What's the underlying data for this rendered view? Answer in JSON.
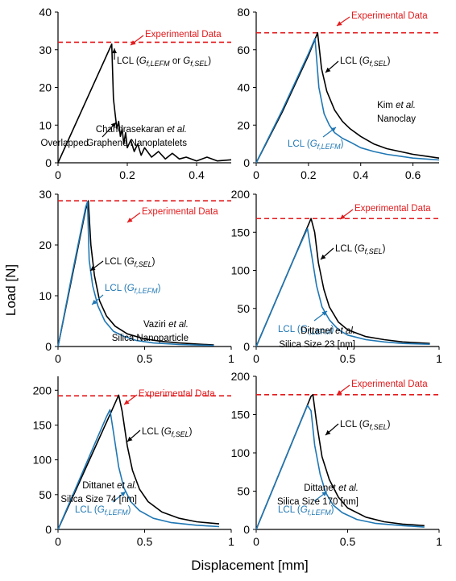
{
  "figure": {
    "ylabel": "Load [N]",
    "xlabel": "Displacement [mm]"
  },
  "chart_data": [
    {
      "type": "line",
      "xlim": [
        0,
        0.5
      ],
      "ylim": [
        0,
        40
      ],
      "xticks": [
        "0",
        "0.2",
        "0.4"
      ],
      "xtick_values": [
        0,
        0.2,
        0.4
      ],
      "yticks": [
        "0",
        "10",
        "20",
        "30",
        "40"
      ],
      "ytick_values": [
        0,
        10,
        20,
        30,
        40
      ],
      "reference_y": 32,
      "reference_label": "Experimental Data",
      "sample_label_1": "Chandrasekaran et al.",
      "sample_label_2": "Graphene Nanoplatelets",
      "lcl_label": "LCL (Gf,LEFM or Gf,SEL)",
      "overlap_label": "Overlapped",
      "series": [
        {
          "color": "#000000",
          "x": [
            0,
            0.155,
            0.157,
            0.16,
            0.165,
            0.17,
            0.175,
            0.18,
            0.185,
            0.19,
            0.195,
            0.2,
            0.21,
            0.22,
            0.23,
            0.24,
            0.25,
            0.27,
            0.29,
            0.31,
            0.33,
            0.35,
            0.37,
            0.4,
            0.43,
            0.46,
            0.5
          ],
          "y": [
            0,
            31.5,
            26,
            17,
            13,
            9,
            11,
            7,
            9,
            5,
            8,
            4,
            6,
            3,
            5,
            2,
            4,
            1.5,
            3,
            1,
            2.5,
            1,
            1.5,
            0.5,
            1.5,
            0.5,
            0.8
          ]
        }
      ]
    },
    {
      "type": "line",
      "xlim": [
        0,
        0.7
      ],
      "ylim": [
        0,
        80
      ],
      "xticks": [
        "0",
        "0.2",
        "0.4",
        "0.6"
      ],
      "xtick_values": [
        0,
        0.2,
        0.4,
        0.6
      ],
      "yticks": [
        "0",
        "20",
        "40",
        "60",
        "80"
      ],
      "ytick_values": [
        0,
        20,
        40,
        60,
        80
      ],
      "reference_y": 69,
      "reference_label": "Experimental Data",
      "sample_label_1": "Kim et al.",
      "sample_label_2": "Nanoclay",
      "lcl_label": "LCL (Gf,SEL)",
      "lcl2_label": "LCL (Gf,LEFM)",
      "series": [
        {
          "color": "#000000",
          "x": [
            0,
            0.1,
            0.2,
            0.235,
            0.25,
            0.27,
            0.3,
            0.33,
            0.36,
            0.4,
            0.45,
            0.5,
            0.55,
            0.6,
            0.65,
            0.7
          ],
          "y": [
            0,
            27,
            57,
            69,
            50,
            38,
            28,
            22,
            18,
            14,
            10,
            7.5,
            6,
            4.5,
            3.5,
            2.5
          ]
        },
        {
          "color": "#1f77b4",
          "x": [
            0,
            0.1,
            0.2,
            0.225,
            0.24,
            0.26,
            0.28,
            0.3,
            0.33,
            0.36,
            0.4,
            0.45,
            0.5,
            0.55,
            0.6,
            0.7
          ],
          "y": [
            0,
            28,
            58,
            66,
            40,
            26,
            20,
            16,
            13,
            11,
            8,
            6,
            4.5,
            3.5,
            2.5,
            1.5
          ]
        }
      ]
    },
    {
      "type": "line",
      "xlim": [
        0,
        1
      ],
      "ylim": [
        0,
        30
      ],
      "xticks": [
        "0",
        "0.5",
        "1"
      ],
      "xtick_values": [
        0,
        0.5,
        1
      ],
      "yticks": [
        "0",
        "10",
        "20",
        "30"
      ],
      "ytick_values": [
        0,
        10,
        20,
        30
      ],
      "reference_y": 28.7,
      "reference_label": "Experimental Data",
      "sample_label_1": "Vaziri et al.",
      "sample_label_2": "Silica Nanoparticle",
      "lcl_label": "LCL (Gf,SEL)",
      "lcl2_label": "LCL (Gf,LEFM)",
      "series": [
        {
          "color": "#000000",
          "x": [
            0,
            0.08,
            0.16,
            0.175,
            0.19,
            0.21,
            0.24,
            0.28,
            0.33,
            0.4,
            0.5,
            0.6,
            0.7,
            0.8,
            0.9
          ],
          "y": [
            0,
            13.5,
            27,
            28.7,
            20,
            14,
            9,
            6,
            4,
            2.5,
            1.5,
            1,
            0.7,
            0.5,
            0.3
          ]
        },
        {
          "color": "#1f77b4",
          "x": [
            0,
            0.08,
            0.16,
            0.17,
            0.18,
            0.2,
            0.23,
            0.27,
            0.32,
            0.38,
            0.45,
            0.55,
            0.7,
            0.9
          ],
          "y": [
            0,
            14,
            27.5,
            28.5,
            17,
            12,
            8,
            5,
            3,
            2,
            1.2,
            0.7,
            0.4,
            0.2
          ]
        }
      ]
    },
    {
      "type": "line",
      "xlim": [
        0,
        1
      ],
      "ylim": [
        0,
        200
      ],
      "xticks": [
        "0",
        "0.5",
        "1"
      ],
      "xtick_values": [
        0,
        0.5,
        1
      ],
      "yticks": [
        "0",
        "50",
        "100",
        "150",
        "200"
      ],
      "ytick_values": [
        0,
        50,
        100,
        150,
        200
      ],
      "reference_y": 168,
      "reference_label": "Experimental Data",
      "sample_label_1": "Dittanet et al.",
      "sample_label_2": "Silica Size 23 [nm]",
      "lcl_label": "LCL (Gf,SEL)",
      "lcl2_label": "LCL (Gf,LEFM)",
      "series": [
        {
          "color": "#000000",
          "x": [
            0,
            0.1,
            0.2,
            0.3,
            0.32,
            0.34,
            0.37,
            0.4,
            0.45,
            0.5,
            0.6,
            0.7,
            0.8,
            0.95
          ],
          "y": [
            0,
            56,
            112,
            168,
            150,
            110,
            75,
            52,
            32,
            22,
            13,
            9,
            6,
            4
          ]
        },
        {
          "color": "#1f77b4",
          "x": [
            0,
            0.1,
            0.2,
            0.28,
            0.3,
            0.33,
            0.36,
            0.4,
            0.45,
            0.5,
            0.6,
            0.7,
            0.8,
            0.95
          ],
          "y": [
            0,
            56,
            112,
            155,
            125,
            80,
            52,
            35,
            22,
            15,
            9,
            6,
            4,
            3
          ]
        }
      ]
    },
    {
      "type": "line",
      "xlim": [
        0,
        1
      ],
      "ylim": [
        0,
        220
      ],
      "xticks": [
        "0",
        "0.5",
        "1"
      ],
      "xtick_values": [
        0,
        0.5,
        1
      ],
      "yticks": [
        "0",
        "50",
        "100",
        "150",
        "200"
      ],
      "ytick_values": [
        0,
        50,
        100,
        150,
        200
      ],
      "reference_y": 192,
      "reference_label": "Experimental Data",
      "sample_label_1": "Dittanet et al.",
      "sample_label_2": "Silica Size 74 [nm]",
      "lcl_label": "LCL (Gf,SEL)",
      "lcl2_label": "LCL (Gf,LEFM)",
      "series": [
        {
          "color": "#000000",
          "x": [
            0,
            0.1,
            0.2,
            0.3,
            0.35,
            0.37,
            0.4,
            0.43,
            0.47,
            0.52,
            0.6,
            0.7,
            0.8,
            0.93
          ],
          "y": [
            0,
            55,
            110,
            165,
            193,
            170,
            120,
            85,
            58,
            40,
            25,
            16,
            11,
            8
          ]
        },
        {
          "color": "#1f77b4",
          "x": [
            0,
            0.1,
            0.2,
            0.28,
            0.3,
            0.32,
            0.35,
            0.38,
            0.42,
            0.47,
            0.55,
            0.65,
            0.8,
            0.93
          ],
          "y": [
            0,
            58,
            116,
            162,
            172,
            140,
            90,
            60,
            40,
            27,
            16,
            10,
            6,
            4
          ]
        }
      ]
    },
    {
      "type": "line",
      "xlim": [
        0,
        1
      ],
      "ylim": [
        0,
        200
      ],
      "xticks": [
        "0",
        "0.5",
        "1"
      ],
      "xtick_values": [
        0,
        0.5,
        1
      ],
      "yticks": [
        "0",
        "50",
        "100",
        "150",
        "200"
      ],
      "ytick_values": [
        0,
        50,
        100,
        150,
        200
      ],
      "reference_y": 176,
      "reference_label": "Experimental Data",
      "sample_label_1": "Dittanet et al.",
      "sample_label_2": "Silica Size 170 [nm]",
      "lcl_label": "LCL (Gf,SEL)",
      "lcl2_label": "LCL (Gf,LEFM)",
      "series": [
        {
          "color": "#000000",
          "x": [
            0,
            0.1,
            0.2,
            0.3,
            0.31,
            0.33,
            0.36,
            0.4,
            0.45,
            0.5,
            0.6,
            0.7,
            0.8,
            0.92
          ],
          "y": [
            0,
            58,
            116,
            174,
            176,
            140,
            95,
            65,
            42,
            28,
            16,
            10,
            7,
            5
          ]
        },
        {
          "color": "#1f77b4",
          "x": [
            0,
            0.1,
            0.2,
            0.28,
            0.3,
            0.32,
            0.35,
            0.38,
            0.42,
            0.47,
            0.55,
            0.65,
            0.8,
            0.92
          ],
          "y": [
            0,
            58,
            116,
            162,
            155,
            110,
            72,
            48,
            32,
            22,
            13,
            8,
            5,
            3
          ]
        }
      ]
    }
  ]
}
